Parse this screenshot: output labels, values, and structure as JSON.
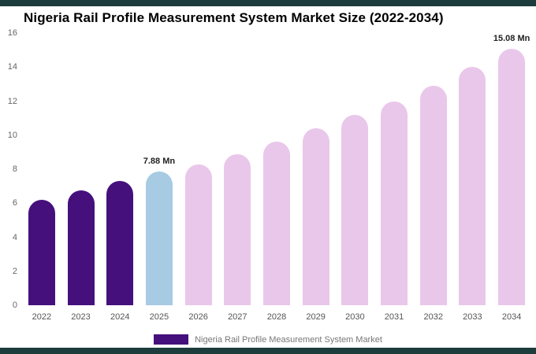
{
  "frame": {
    "border_color": "#1d3c3c"
  },
  "chart_data": {
    "type": "bar",
    "title": "Nigeria Rail Profile Measurement System Market Size (2022-2034)",
    "categories": [
      "2022",
      "2023",
      "2024",
      "2025",
      "2026",
      "2027",
      "2028",
      "2029",
      "2030",
      "2031",
      "2032",
      "2033",
      "2034"
    ],
    "values": [
      6.2,
      6.75,
      7.3,
      7.88,
      8.3,
      8.9,
      9.6,
      10.4,
      11.2,
      12.0,
      12.9,
      14.0,
      15.08
    ],
    "bar_colors": [
      "#45107c",
      "#45107c",
      "#45107c",
      "#a6cbe3",
      "#e9c7ea",
      "#e9c7ea",
      "#e9c7ea",
      "#e9c7ea",
      "#e9c7ea",
      "#e9c7ea",
      "#e9c7ea",
      "#e9c7ea",
      "#e9c7ea"
    ],
    "annotations": [
      {
        "category": "2025",
        "text": "7.88 Mn"
      },
      {
        "category": "2034",
        "text": "15.08 Mn"
      }
    ],
    "xlabel": "",
    "ylabel": "",
    "ylim": [
      0,
      16
    ],
    "yticks": [
      0,
      2,
      4,
      6,
      8,
      10,
      12,
      14,
      16
    ],
    "grid": false,
    "legend_position": "bottom",
    "legend": {
      "label": "Nigeria Rail Profile Measurement System Market",
      "swatch_color": "#45107c"
    },
    "unit": "Mn"
  }
}
